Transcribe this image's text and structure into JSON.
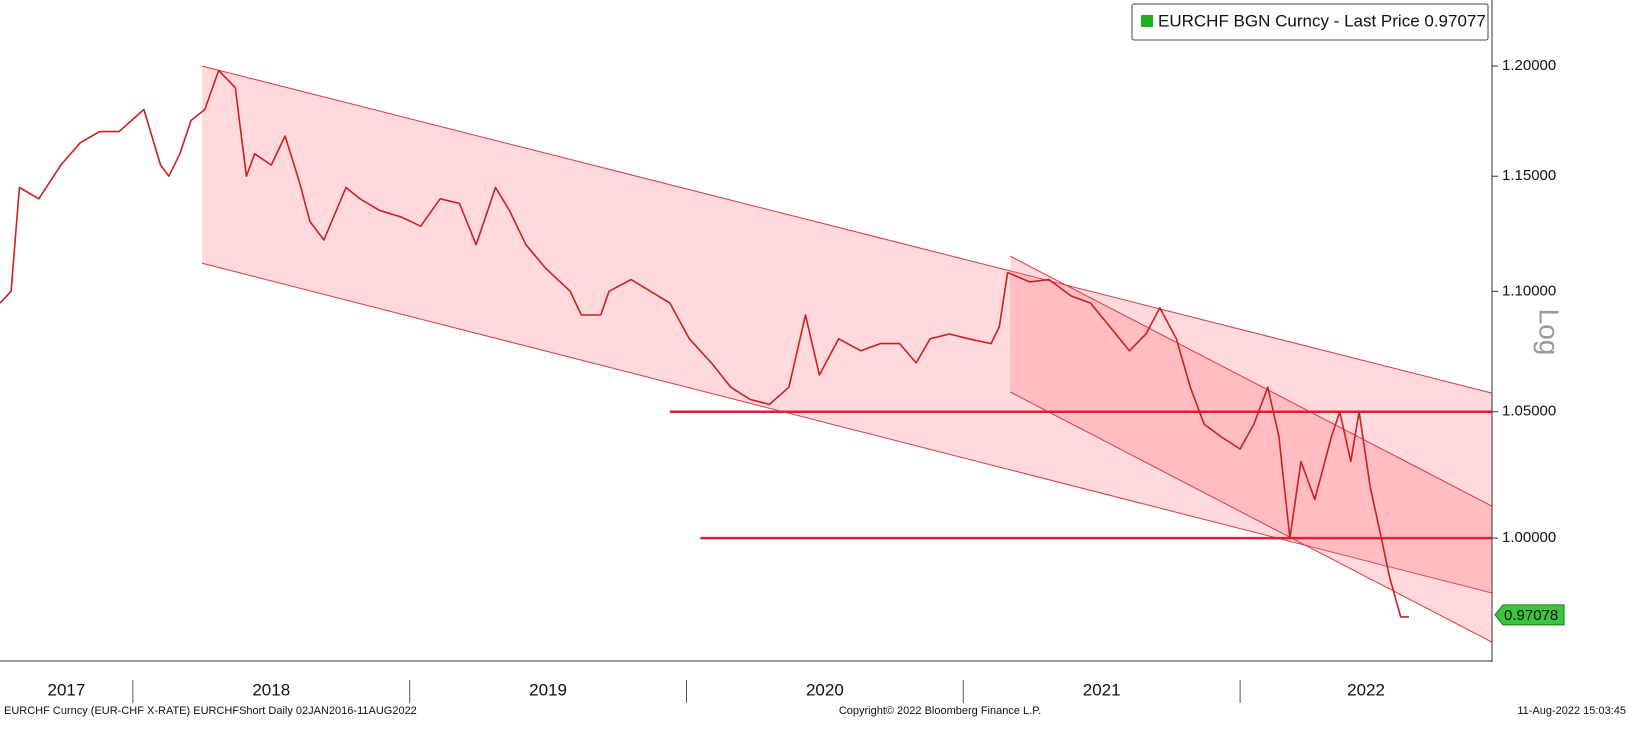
{
  "chart_data": {
    "type": "line",
    "legend": "EURCHF BGN Curncy - Last Price 0.97077",
    "legend_color": "#22b022",
    "yaxis_label": "Log",
    "log_scale": true,
    "last_value": 0.97078,
    "footer_left": "EURCHF Curncy (EUR-CHF X-RATE) EURCHFShort  Daily 02JAN2016-11AUG2022",
    "footer_center": "Copyright© 2022 Bloomberg Finance L.P.",
    "footer_right": "11-Aug-2022 15:03:45",
    "xlim": [
      2017.52,
      2022.91
    ],
    "ylim": [
      0.954,
      1.231
    ],
    "xticks": [
      {
        "value": 2017,
        "label": "2017"
      },
      {
        "value": 2018,
        "label": "2018"
      },
      {
        "value": 2019,
        "label": "2019"
      },
      {
        "value": 2020,
        "label": "2020"
      },
      {
        "value": 2021,
        "label": "2021"
      },
      {
        "value": 2022,
        "label": "2022"
      }
    ],
    "yticks": [
      {
        "value": 1.0,
        "label": "1.00000"
      },
      {
        "value": 1.05,
        "label": "1.05000"
      },
      {
        "value": 1.1,
        "label": "1.10000"
      },
      {
        "value": 1.15,
        "label": "1.15000"
      },
      {
        "value": 1.2,
        "label": "1.20000"
      }
    ],
    "hlines": [
      {
        "value": 1.05,
        "x0": 2019.94
      },
      {
        "value": 1.0,
        "x0": 2020.05
      }
    ],
    "channels": [
      {
        "x": [
          2018.25,
          2022.91
        ],
        "upper": [
          1.2,
          1.0576
        ],
        "lower": [
          1.112,
          0.979
        ]
      },
      {
        "x": [
          2021.17,
          2022.91
        ],
        "upper": [
          1.115,
          1.0124
        ],
        "lower": [
          1.058,
          0.9606
        ]
      }
    ],
    "series": [
      {
        "name": "EURCHF BGN Curncy",
        "color": "#cc2020",
        "x": [
          2017.52,
          2017.56,
          2017.59,
          2017.66,
          2017.74,
          2017.81,
          2017.88,
          2017.95,
          2018.04,
          2018.1,
          2018.13,
          2018.17,
          2018.21,
          2018.26,
          2018.31,
          2018.37,
          2018.41,
          2018.44,
          2018.5,
          2018.55,
          2018.6,
          2018.64,
          2018.69,
          2018.77,
          2018.82,
          2018.89,
          2018.97,
          2019.04,
          2019.11,
          2019.18,
          2019.24,
          2019.31,
          2019.36,
          2019.42,
          2019.49,
          2019.58,
          2019.62,
          2019.69,
          2019.72,
          2019.8,
          2019.87,
          2019.94,
          2020.01,
          2020.09,
          2020.16,
          2020.23,
          2020.3,
          2020.37,
          2020.43,
          2020.48,
          2020.55,
          2020.63,
          2020.7,
          2020.77,
          2020.83,
          2020.88,
          2020.95,
          2021.02,
          2021.1,
          2021.13,
          2021.16,
          2021.24,
          2021.31,
          2021.39,
          2021.46,
          2021.53,
          2021.6,
          2021.66,
          2021.71,
          2021.77,
          2021.82,
          2021.87,
          2021.93,
          2022.0,
          2022.05,
          2022.1,
          2022.14,
          2022.18,
          2022.22,
          2022.27,
          2022.33,
          2022.36,
          2022.4,
          2022.43,
          2022.47,
          2022.51,
          2022.54,
          2022.58,
          2022.61
        ],
        "values": [
          1.095,
          1.1,
          1.145,
          1.14,
          1.155,
          1.165,
          1.17,
          1.17,
          1.18,
          1.155,
          1.15,
          1.16,
          1.175,
          1.18,
          1.198,
          1.19,
          1.15,
          1.16,
          1.155,
          1.168,
          1.148,
          1.13,
          1.122,
          1.145,
          1.14,
          1.135,
          1.132,
          1.128,
          1.14,
          1.138,
          1.12,
          1.145,
          1.135,
          1.12,
          1.11,
          1.1,
          1.09,
          1.09,
          1.1,
          1.105,
          1.1,
          1.095,
          1.08,
          1.07,
          1.06,
          1.055,
          1.053,
          1.06,
          1.09,
          1.065,
          1.08,
          1.075,
          1.078,
          1.078,
          1.07,
          1.08,
          1.082,
          1.08,
          1.078,
          1.085,
          1.108,
          1.104,
          1.105,
          1.098,
          1.095,
          1.085,
          1.075,
          1.082,
          1.093,
          1.08,
          1.06,
          1.045,
          1.04,
          1.035,
          1.045,
          1.06,
          1.04,
          1.0,
          1.03,
          1.015,
          1.04,
          1.05,
          1.03,
          1.05,
          1.02,
          1.0,
          0.985,
          0.97,
          0.97
        ]
      }
    ]
  }
}
